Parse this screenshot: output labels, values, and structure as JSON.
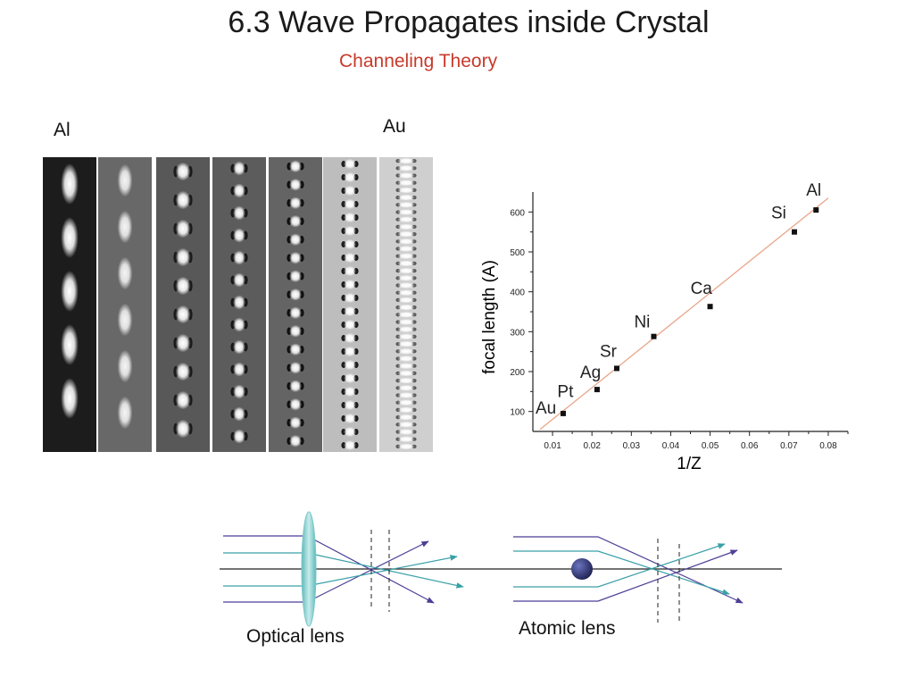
{
  "slide": {
    "title": "6.3 Wave Propagates inside Crystal",
    "subtitle": "Channeling Theory"
  },
  "image_strips": {
    "left_label": "Al",
    "right_label": "Au",
    "strips": [
      {
        "bg": "#1c1c1c",
        "blob": "#ffffff",
        "dot": "#ffffff",
        "count": 5,
        "period": 60,
        "rx": 7,
        "ry": 20
      },
      {
        "bg": "#686868",
        "blob": "#f4f4f4",
        "dot": "#2a2a2a",
        "count": 6,
        "period": 52,
        "rx": 6,
        "ry": 16
      },
      {
        "bg": "#585858",
        "blob": "#ffffff",
        "dot": "#101010",
        "count": 10,
        "period": 32,
        "rx": 6,
        "ry": 9
      },
      {
        "bg": "#5c5c5c",
        "blob": "#ffffff",
        "dot": "#0c0c0c",
        "count": 13,
        "period": 25,
        "rx": 5,
        "ry": 7
      },
      {
        "bg": "#646464",
        "blob": "#ffffff",
        "dot": "#000000",
        "count": 16,
        "period": 20.5,
        "rx": 5,
        "ry": 6
      },
      {
        "bg": "#bdbdbd",
        "blob": "#ffffff",
        "dot": "#000000",
        "count": 22,
        "period": 15,
        "rx": 5,
        "ry": 5
      },
      {
        "bg": "#cfcfcf",
        "blob": "#ffffff",
        "dot": "#444444",
        "count": 40,
        "period": 8.2,
        "rx": 7,
        "ry": 3
      }
    ]
  },
  "chart_data": {
    "type": "scatter",
    "title": "",
    "xlabel": "1/Z",
    "ylabel": "focal length (A)",
    "xlim": [
      0.005,
      0.085
    ],
    "ylim": [
      50,
      650
    ],
    "x_ticks": [
      "0.01",
      "0.02",
      "0.03",
      "0.04",
      "0.05",
      "0.06",
      "0.07",
      "0.08"
    ],
    "y_ticks": [
      "100",
      "200",
      "300",
      "400",
      "500",
      "600"
    ],
    "points": [
      {
        "label": "Au",
        "x": 0.0127,
        "y": 95
      },
      {
        "label": "Pt",
        "x": 0.0128,
        "y": 98
      },
      {
        "label": "Ag",
        "x": 0.0213,
        "y": 155
      },
      {
        "label": "Sr",
        "x": 0.0263,
        "y": 208
      },
      {
        "label": "Ni",
        "x": 0.0357,
        "y": 288
      },
      {
        "label": "Ca",
        "x": 0.05,
        "y": 363
      },
      {
        "label": "Si",
        "x": 0.0714,
        "y": 550
      },
      {
        "label": "Al",
        "x": 0.0769,
        "y": 605
      }
    ],
    "fit_line": {
      "x": [
        0.0068,
        0.08
      ],
      "y": [
        55,
        635
      ],
      "color": "#e9a58a"
    },
    "marker_color": "#111111"
  },
  "diagram": {
    "optical_caption": "Optical lens",
    "atomic_caption": "Atomic lens",
    "ray_color_dark": "#4b3f96",
    "ray_color_teal": "#3aa0a8",
    "lens_color": "#8fd3d3",
    "atom_color": "#2a2f6a"
  }
}
